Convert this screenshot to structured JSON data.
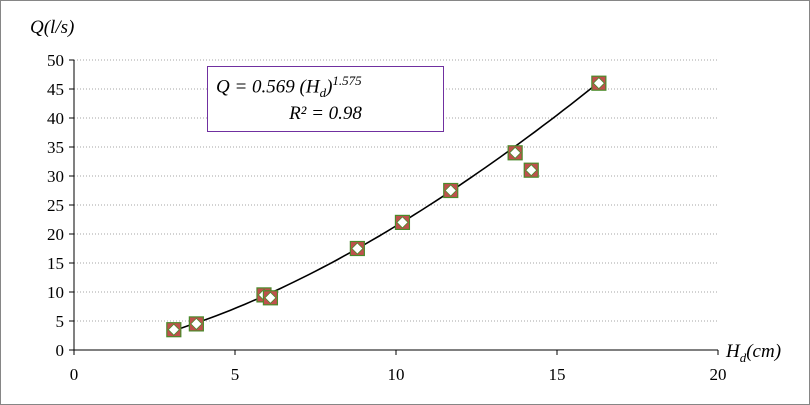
{
  "chart_data": {
    "type": "scatter",
    "ylabel": "Q(l/s)",
    "xlabel_main": "H",
    "xlabel_sub": "d",
    "xlabel_unit": "(cm)",
    "xlim": [
      0,
      20
    ],
    "ylim": [
      0,
      50
    ],
    "x_ticks": [
      0,
      5,
      10,
      15,
      20
    ],
    "y_ticks": [
      0,
      5,
      10,
      15,
      20,
      25,
      30,
      35,
      40,
      45,
      50
    ],
    "grid": "horizontal-dotted",
    "points": [
      {
        "x": 3.1,
        "y": 3.5
      },
      {
        "x": 3.8,
        "y": 4.5
      },
      {
        "x": 5.9,
        "y": 9.5
      },
      {
        "x": 6.1,
        "y": 9.0
      },
      {
        "x": 8.8,
        "y": 17.5
      },
      {
        "x": 10.2,
        "y": 22.0
      },
      {
        "x": 11.7,
        "y": 27.5
      },
      {
        "x": 13.7,
        "y": 34.0
      },
      {
        "x": 14.2,
        "y": 31.0
      },
      {
        "x": 16.3,
        "y": 46.0
      }
    ],
    "trendline": {
      "type": "power",
      "coefficient": 0.569,
      "exponent": 1.575,
      "x_from": 3.1,
      "x_to": 16.3
    }
  },
  "equation": {
    "prefix": "Q = 0.569   (H",
    "sub": "d",
    "close": ")",
    "exponent": "1.575",
    "r2": "R² = 0.98"
  },
  "colors": {
    "marker_outer": "#c0504d",
    "marker_border": "#4a8a2a",
    "marker_inner": "#ffffff",
    "trendline": "#000000",
    "gridline": "#a6a6a6",
    "box_border": "#7030a0",
    "frame": "#868686"
  }
}
